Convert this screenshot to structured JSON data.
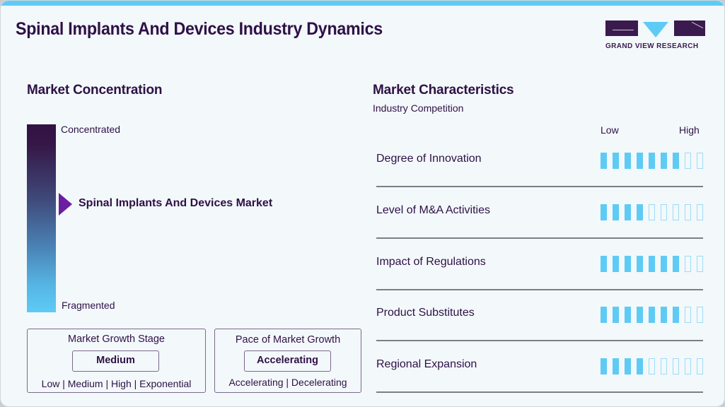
{
  "header": {
    "title": "Spinal Implants And Devices Industry Dynamics",
    "logo_text": "GRAND VIEW RESEARCH"
  },
  "concentration": {
    "heading": "Market Concentration",
    "top_label": "Concentrated",
    "bottom_label": "Fragmented",
    "marker_label": "Spinal Implants And Devices Market"
  },
  "growth_stage": {
    "title": "Market Growth Stage",
    "value": "Medium",
    "options": "Low | Medium | High | Exponential"
  },
  "growth_pace": {
    "title": "Pace of Market Growth",
    "value": "Accelerating",
    "options": "Accelerating | Decelerating"
  },
  "characteristics": {
    "heading": "Market Characteristics",
    "subheading": "Industry Competition",
    "low_label": "Low",
    "high_label": "High",
    "total_segments": 9,
    "colors": {
      "filled": "#5ecbf5",
      "empty_border": "#9cdcf5"
    },
    "rows": [
      {
        "label": "Degree of Innovation",
        "filled": 7
      },
      {
        "label": "Level of M&A Activities",
        "filled": 4
      },
      {
        "label": "Impact of Regulations",
        "filled": 7
      },
      {
        "label": "Product Substitutes",
        "filled": 7
      },
      {
        "label": "Regional Expansion",
        "filled": 4
      }
    ]
  }
}
